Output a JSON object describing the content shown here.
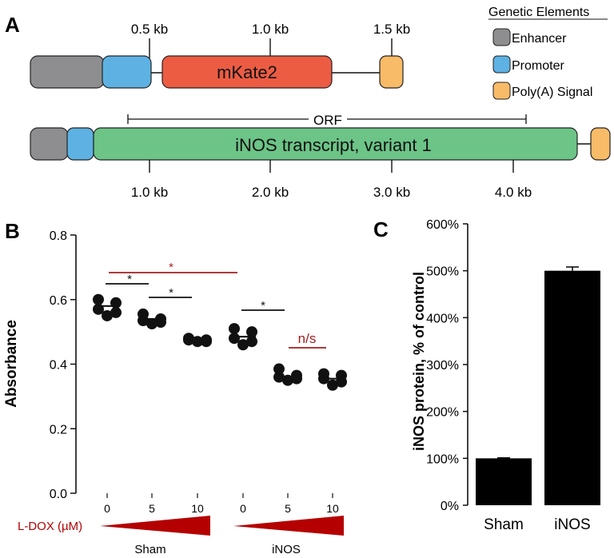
{
  "panel_a": {
    "label": "A",
    "construct1": {
      "segments": [
        {
          "name": "Enhancer",
          "label": ""
        },
        {
          "name": "Promoter",
          "label": ""
        },
        {
          "name": "mKate2",
          "label": "mKate2"
        },
        {
          "name": "Poly(A) Signal",
          "label": ""
        }
      ],
      "ticks": [
        "0.5 kb",
        "1.0 kb",
        "1.5 kb"
      ]
    },
    "construct2": {
      "segments": [
        {
          "name": "Enhancer",
          "label": ""
        },
        {
          "name": "Promoter",
          "label": ""
        },
        {
          "name": "iNOS transcript, variant 1",
          "label": "iNOS transcript, variant 1"
        },
        {
          "name": "Poly(A) Signal",
          "label": ""
        }
      ],
      "orf_label": "ORF",
      "ticks": [
        "1.0 kb",
        "2.0 kb",
        "3.0 kb",
        "4.0 kb"
      ]
    },
    "legend": {
      "title": "Genetic Elements",
      "items": [
        {
          "label": "Enhancer",
          "color": "#8e8e91"
        },
        {
          "label": "Promoter",
          "color": "#5db2e3"
        },
        {
          "label": "Poly(A) Signal",
          "color": "#f8bb67"
        }
      ]
    },
    "colors": {
      "mKate2": "#ec5c43",
      "iNOS": "#6cc487"
    }
  },
  "chart_data": [
    {
      "panel": "B",
      "type": "scatter",
      "ylabel": "Absorbance",
      "ylim": [
        0.0,
        0.8
      ],
      "yticks": [
        "0.0",
        "0.2",
        "0.4",
        "0.6",
        "0.8"
      ],
      "xlabel": "L-DOX (µM)",
      "groups": [
        {
          "name": "Sham",
          "doses": [
            {
              "dose": "0",
              "values": [
                0.6,
                0.59,
                0.57,
                0.56,
                0.55
              ],
              "mean": 0.58
            },
            {
              "dose": "5",
              "values": [
                0.555,
                0.54,
                0.535,
                0.53,
                0.525
              ],
              "mean": 0.54
            },
            {
              "dose": "10",
              "values": [
                0.48,
                0.475,
                0.475,
                0.47,
                0.47
              ],
              "mean": 0.475
            }
          ]
        },
        {
          "name": "iNOS",
          "doses": [
            {
              "dose": "0",
              "values": [
                0.51,
                0.5,
                0.48,
                0.47,
                0.46
              ],
              "mean": 0.485
            },
            {
              "dose": "5",
              "values": [
                0.385,
                0.365,
                0.36,
                0.355,
                0.35
              ],
              "mean": 0.36
            },
            {
              "dose": "10",
              "values": [
                0.37,
                0.365,
                0.355,
                0.345,
                0.335
              ],
              "mean": 0.355
            }
          ]
        }
      ],
      "annotations": [
        {
          "label": "*",
          "color": "#a31f1f"
        },
        {
          "label": "*",
          "color": "#111111"
        },
        {
          "label": "*",
          "color": "#111111"
        },
        {
          "label": "*",
          "color": "#111111"
        },
        {
          "label": "n/s",
          "color": "#a31f1f"
        }
      ]
    },
    {
      "panel": "C",
      "type": "bar",
      "categories": [
        "Sham",
        "iNOS"
      ],
      "values": [
        100,
        500
      ],
      "errors": [
        1,
        8
      ],
      "ylabel": "iNOS protein, % of control",
      "ylim": [
        0,
        600
      ],
      "yticks": [
        "0%",
        "100%",
        "200%",
        "300%",
        "400%",
        "500%",
        "600%"
      ]
    }
  ],
  "accent_color": "#b40000"
}
